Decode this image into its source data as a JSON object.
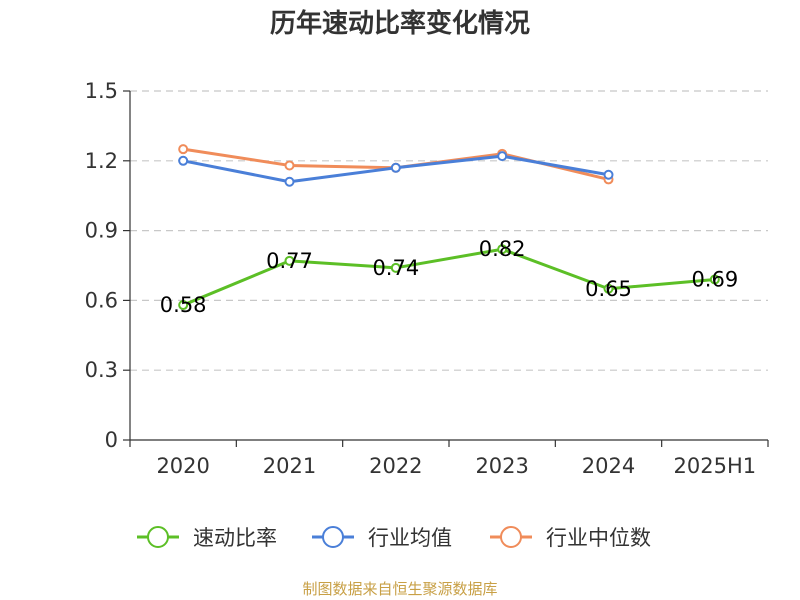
{
  "chart_data": {
    "type": "line",
    "title": "历年速动比率变化情况",
    "categories": [
      "2020",
      "2021",
      "2022",
      "2023",
      "2024",
      "2025H1"
    ],
    "ylim": [
      0,
      1.5
    ],
    "yticks": [
      "0",
      "0.3",
      "0.6",
      "0.9",
      "1.2",
      "1.5"
    ],
    "grid": true,
    "legend_position": "bottom",
    "series": [
      {
        "name": "速动比率",
        "color": "#5cbf26",
        "values": [
          0.58,
          0.77,
          0.74,
          0.82,
          0.65,
          0.69
        ],
        "labels": [
          "0.58",
          "0.77",
          "0.74",
          "0.82",
          "0.65",
          "0.69"
        ]
      },
      {
        "name": "行业均值",
        "color": "#4a7fd8",
        "values": [
          1.2,
          1.11,
          1.17,
          1.22,
          1.14,
          null
        ]
      },
      {
        "name": "行业中位数",
        "color": "#f08c5a",
        "values": [
          1.25,
          1.18,
          1.17,
          1.23,
          1.12,
          null
        ]
      }
    ]
  },
  "source": "制图数据来自恒生聚源数据库"
}
